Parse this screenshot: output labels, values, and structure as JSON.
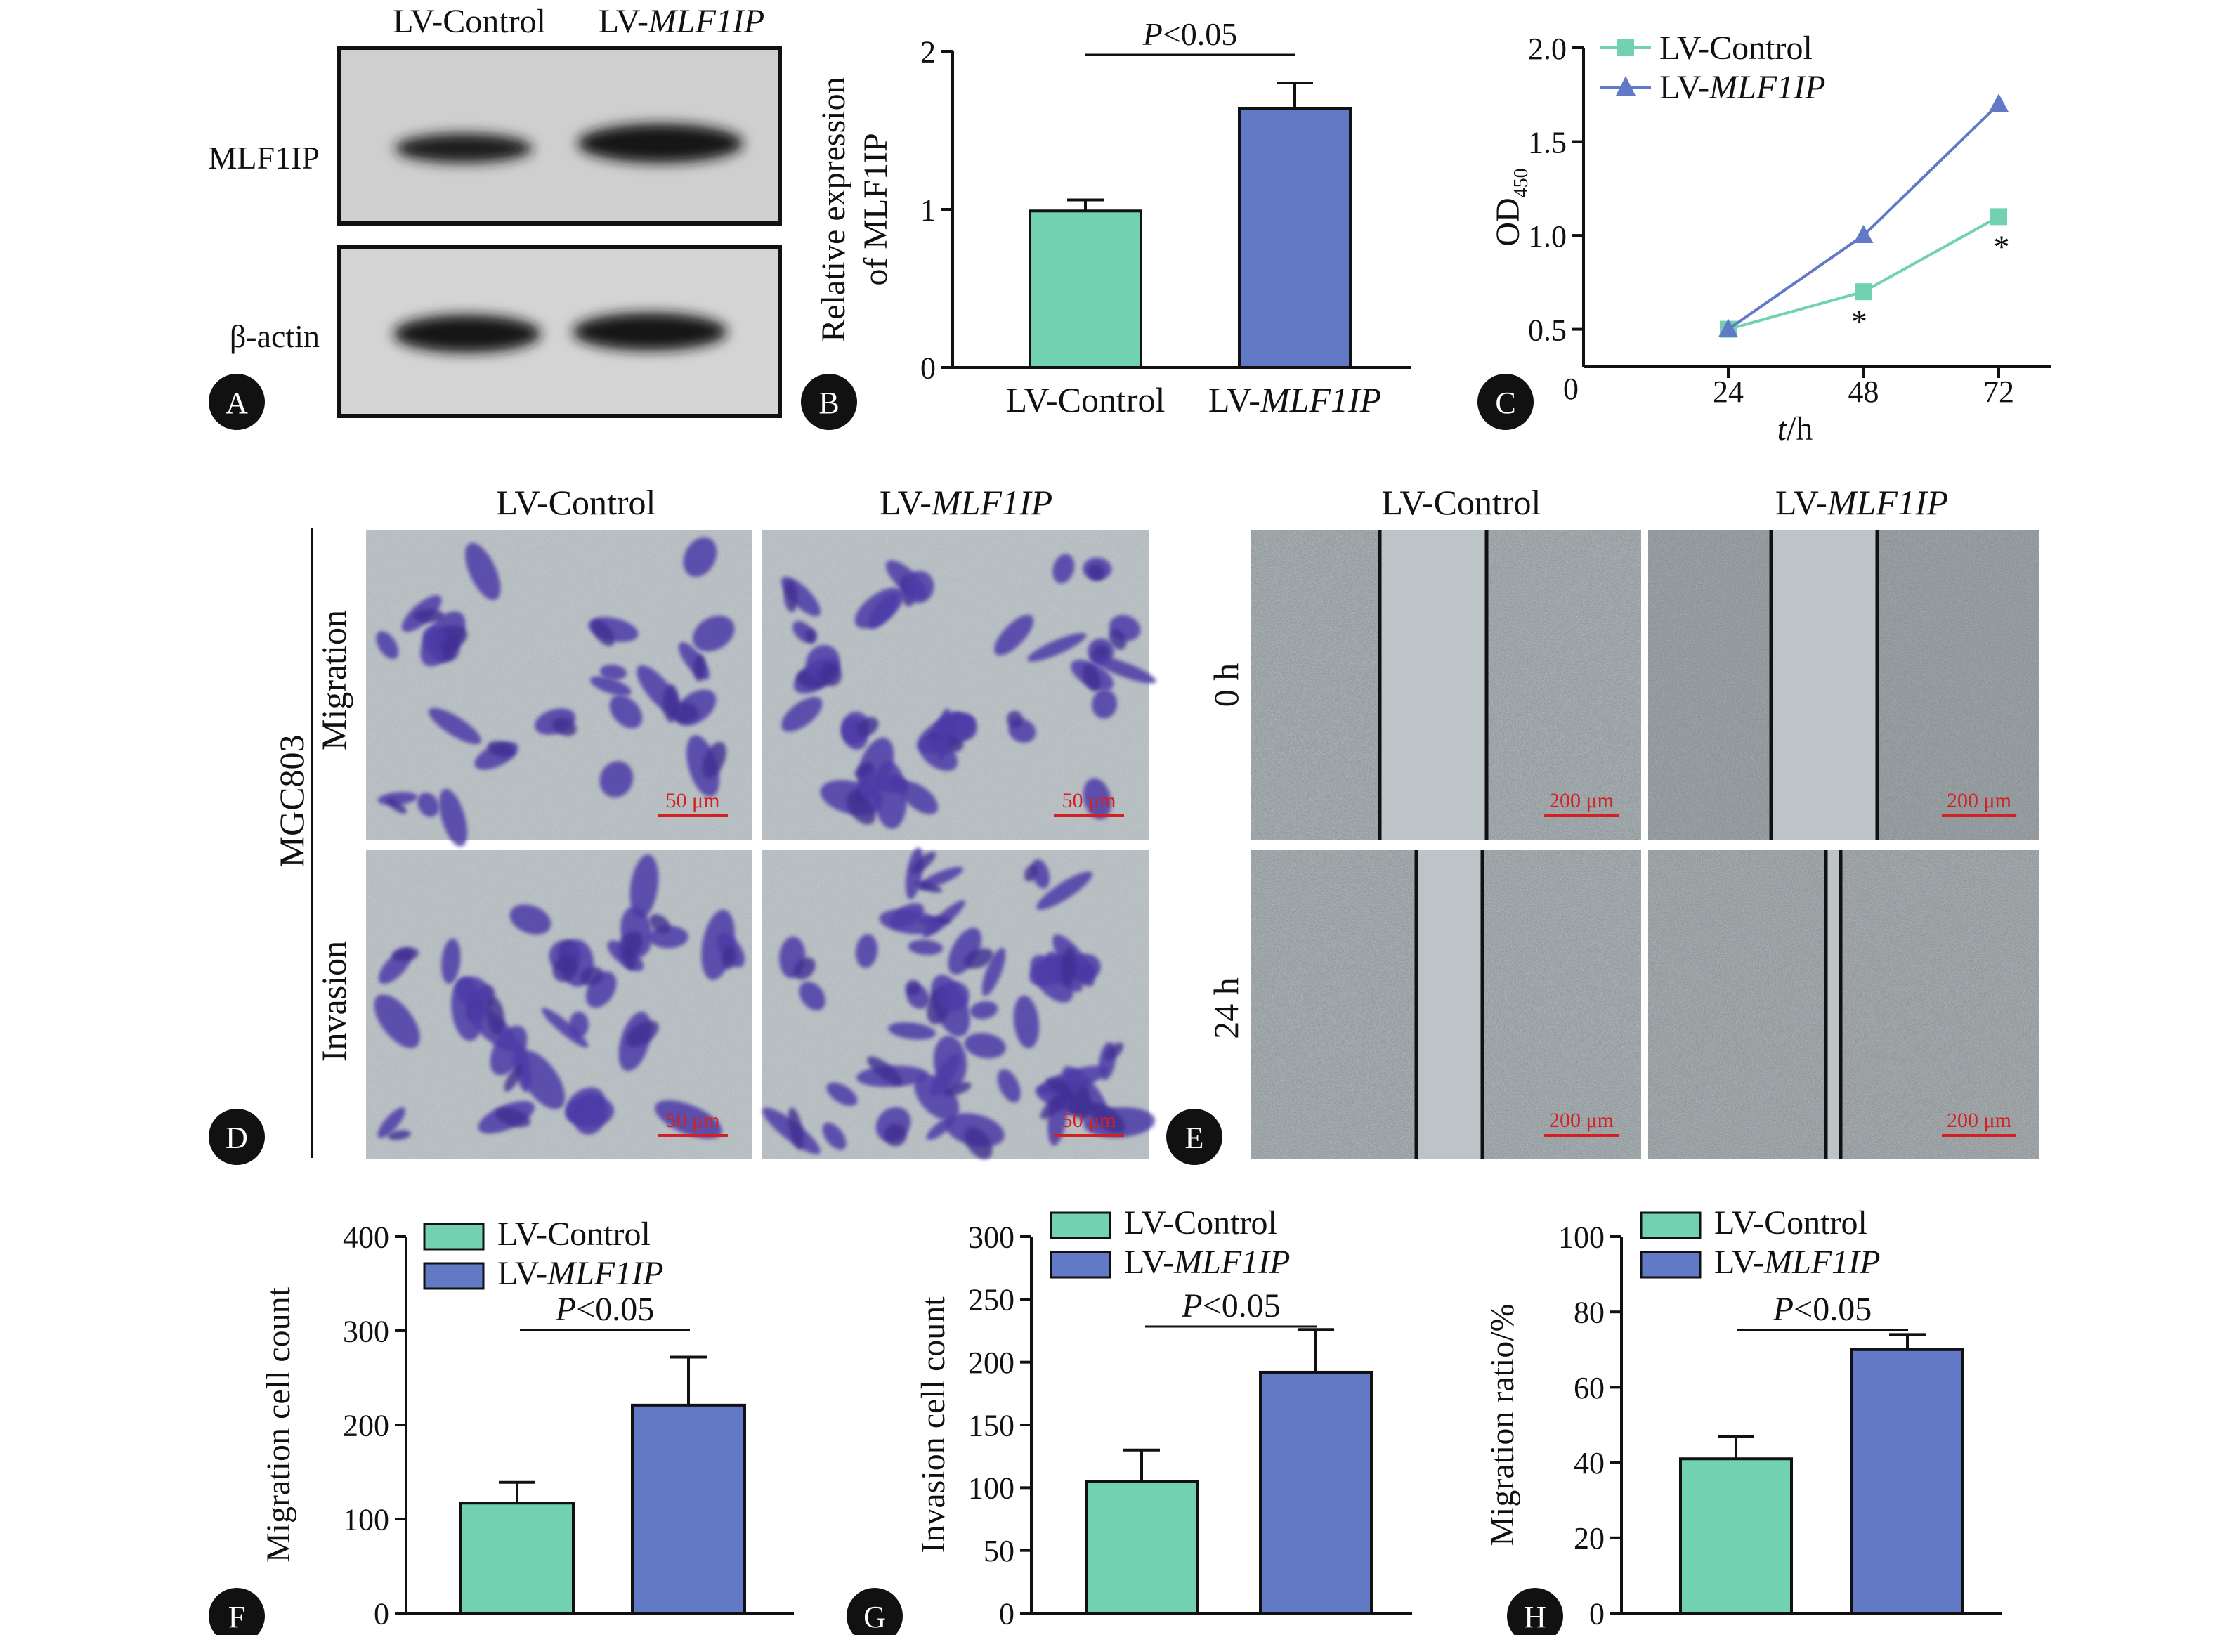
{
  "colors": {
    "control": "#72d1b1",
    "treated": "#6279c6",
    "ink": "#111111",
    "scale_bar": "#d42020",
    "stain": "#4d3aa8"
  },
  "labels": {
    "lv_control": "LV-Control",
    "lv_prefix": "LV-",
    "gene_italic": "MLF1IP"
  },
  "panel_letters": [
    "A",
    "B",
    "C",
    "D",
    "E",
    "F",
    "G",
    "H"
  ],
  "panel_a": {
    "col_labels": [
      "LV-Control",
      "LV-MLF1IP"
    ],
    "row_labels": [
      "MLF1IP",
      "β-actin"
    ]
  },
  "panel_d": {
    "col_labels": [
      "LV-Control",
      "LV-MLF1IP"
    ],
    "row_labels": [
      "Migration",
      "Invasion"
    ],
    "cell_line": "MGC803",
    "scale_bar": "50 μm"
  },
  "panel_e": {
    "col_labels": [
      "LV-Control",
      "LV-MLF1IP"
    ],
    "row_labels": [
      "0 h",
      "24 h"
    ],
    "scale_bar": "200 μm"
  },
  "chart_data": [
    {
      "panel": "B",
      "type": "bar",
      "categories": [
        "LV-Control",
        "LV-MLF1IP"
      ],
      "values": [
        0.99,
        1.64
      ],
      "errors": [
        0.07,
        0.16
      ],
      "ylabel": [
        "Relative expression",
        "of MLF1IP"
      ],
      "ylim": [
        0,
        2
      ],
      "yticks": [
        0,
        1,
        2
      ],
      "significance": "P<0.05",
      "grid": false
    },
    {
      "panel": "C",
      "type": "line",
      "x": [
        24,
        48,
        72
      ],
      "xticks": [
        24,
        48,
        72
      ],
      "yticks": [
        0.5,
        1.0,
        1.5,
        2.0
      ],
      "origin_label": "0",
      "ylim": [
        0.3,
        2.0
      ],
      "ylabel": "OD",
      "ylabel_sub": "450",
      "xlabel_italic": "t",
      "xlabel_rest": "/h",
      "series": [
        {
          "name": "LV-Control",
          "values": [
            0.5,
            0.7,
            1.1
          ],
          "marker": "square"
        },
        {
          "name": "LV-MLF1IP",
          "values": [
            0.5,
            1.0,
            1.7
          ],
          "marker": "triangle"
        }
      ],
      "significance_marks": [
        "*",
        "*"
      ],
      "legend": "top-left",
      "grid": false
    },
    {
      "panel": "F",
      "type": "bar",
      "categories": [
        "LV-Control",
        "LV-MLF1IP"
      ],
      "values": [
        117,
        221
      ],
      "errors": [
        22,
        51
      ],
      "ylabel": "Migration cell count",
      "ylim": [
        0,
        400
      ],
      "yticks": [
        0,
        100,
        200,
        300,
        400
      ],
      "significance": "P<0.05",
      "legend": "top-left",
      "grid": false
    },
    {
      "panel": "G",
      "type": "bar",
      "categories": [
        "LV-Control",
        "LV-MLF1IP"
      ],
      "values": [
        105,
        192
      ],
      "errors": [
        25,
        34
      ],
      "ylabel": "Invasion cell count",
      "ylim": [
        0,
        300
      ],
      "yticks": [
        0,
        50,
        100,
        150,
        200,
        250,
        300
      ],
      "significance": "P<0.05",
      "legend": "top-left",
      "grid": false
    },
    {
      "panel": "H",
      "type": "bar",
      "categories": [
        "LV-Control",
        "LV-MLF1IP"
      ],
      "values": [
        41,
        70
      ],
      "errors": [
        6,
        4
      ],
      "ylabel": "Migration ratio/%",
      "ylim": [
        0,
        100
      ],
      "yticks": [
        0,
        20,
        40,
        60,
        80,
        100
      ],
      "significance": "P<0.05",
      "legend": "top-left",
      "grid": false
    }
  ]
}
